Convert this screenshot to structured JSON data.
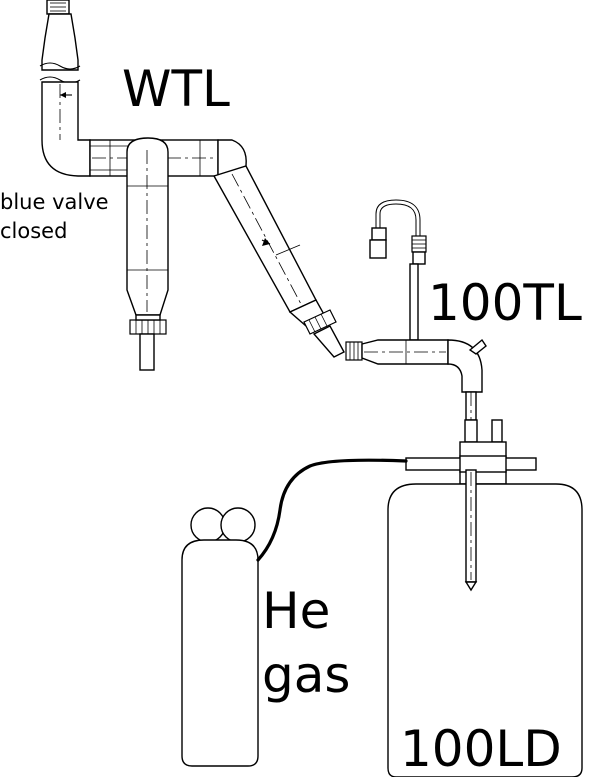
{
  "labels": {
    "wtl": "WTL",
    "valve_line1": "blue valve",
    "valve_line2": "closed",
    "tl100": "100TL",
    "he_line1": "He",
    "he_line2": "gas",
    "ld100": "100LD"
  },
  "colors": {
    "stroke": "#000000",
    "background": "#ffffff"
  }
}
